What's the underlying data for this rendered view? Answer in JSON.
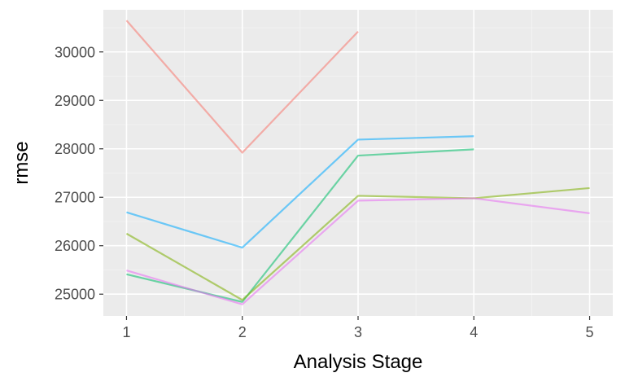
{
  "chart_data": {
    "type": "line",
    "title": "",
    "xlabel": "Analysis Stage",
    "ylabel": "rmse",
    "xlim": [
      0.8,
      5.2
    ],
    "ylim": [
      24550,
      30870
    ],
    "x_ticks": [
      1,
      2,
      3,
      4,
      5
    ],
    "y_ticks": [
      25000,
      26000,
      27000,
      28000,
      29000,
      30000
    ],
    "grid": true,
    "legend": "none",
    "series": [
      {
        "color": "#F8766D",
        "x": [
          1,
          2,
          3
        ],
        "y": [
          30650,
          27920,
          30420
        ]
      },
      {
        "color": "#00A9FF",
        "x": [
          1,
          2,
          3,
          4
        ],
        "y": [
          26690,
          25960,
          28190,
          28260
        ]
      },
      {
        "color": "#00BE67",
        "x": [
          1,
          2,
          3,
          4
        ],
        "y": [
          25410,
          24840,
          27860,
          27990
        ]
      },
      {
        "color": "#7CAE00",
        "x": [
          1,
          2,
          3,
          4,
          5
        ],
        "y": [
          26250,
          24880,
          27030,
          26980,
          27190
        ]
      },
      {
        "color": "#E76BF3",
        "x": [
          1,
          2,
          3,
          4,
          5
        ],
        "y": [
          25490,
          24790,
          26930,
          26980,
          26670
        ]
      }
    ]
  }
}
